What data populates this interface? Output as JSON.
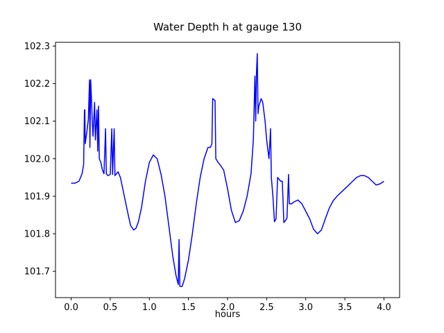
{
  "chart_data": {
    "type": "line",
    "title": "Water Depth h at gauge 130",
    "xlabel": "hours",
    "ylabel": "",
    "line_color": "#0000ff",
    "background": "#ffffff",
    "grid": false,
    "legend": "none",
    "xlim": [
      -0.2,
      4.2
    ],
    "ylim": [
      101.63,
      102.31
    ],
    "xticks": [
      0.0,
      0.5,
      1.0,
      1.5,
      2.0,
      2.5,
      3.0,
      3.5,
      4.0
    ],
    "xtick_labels": [
      "0.0",
      "0.5",
      "1.0",
      "1.5",
      "2.0",
      "2.5",
      "3.0",
      "3.5",
      "4.0"
    ],
    "yticks": [
      101.7,
      101.8,
      101.9,
      102.0,
      102.1,
      102.2,
      102.3
    ],
    "ytick_labels": [
      "101.7",
      "101.8",
      "101.9",
      "102.0",
      "102.1",
      "102.2",
      "102.3"
    ],
    "points": [
      [
        0.0,
        101.935
      ],
      [
        0.05,
        101.935
      ],
      [
        0.1,
        101.94
      ],
      [
        0.14,
        101.96
      ],
      [
        0.16,
        101.985
      ],
      [
        0.17,
        102.13
      ],
      [
        0.175,
        102.13
      ],
      [
        0.18,
        102.04
      ],
      [
        0.2,
        102.07
      ],
      [
        0.22,
        102.105
      ],
      [
        0.235,
        102.21
      ],
      [
        0.24,
        102.03
      ],
      [
        0.25,
        102.21
      ],
      [
        0.26,
        102.16
      ],
      [
        0.27,
        102.1
      ],
      [
        0.28,
        102.06
      ],
      [
        0.3,
        102.15
      ],
      [
        0.31,
        102.05
      ],
      [
        0.33,
        102.13
      ],
      [
        0.34,
        102.02
      ],
      [
        0.35,
        102.14
      ],
      [
        0.36,
        102.0
      ],
      [
        0.38,
        101.99
      ],
      [
        0.4,
        101.97
      ],
      [
        0.42,
        101.96
      ],
      [
        0.44,
        102.08
      ],
      [
        0.45,
        101.96
      ],
      [
        0.47,
        101.955
      ],
      [
        0.5,
        101.958
      ],
      [
        0.52,
        102.08
      ],
      [
        0.53,
        101.958
      ],
      [
        0.55,
        102.08
      ],
      [
        0.56,
        101.955
      ],
      [
        0.58,
        101.96
      ],
      [
        0.6,
        101.965
      ],
      [
        0.63,
        101.95
      ],
      [
        0.65,
        101.93
      ],
      [
        0.68,
        101.9
      ],
      [
        0.72,
        101.86
      ],
      [
        0.76,
        101.822
      ],
      [
        0.8,
        101.81
      ],
      [
        0.83,
        101.815
      ],
      [
        0.86,
        101.832
      ],
      [
        0.9,
        101.87
      ],
      [
        0.95,
        101.94
      ],
      [
        1.0,
        101.99
      ],
      [
        1.05,
        102.01
      ],
      [
        1.1,
        102.0
      ],
      [
        1.15,
        101.958
      ],
      [
        1.2,
        101.9
      ],
      [
        1.25,
        101.82
      ],
      [
        1.3,
        101.74
      ],
      [
        1.34,
        101.69
      ],
      [
        1.37,
        101.665
      ],
      [
        1.38,
        101.785
      ],
      [
        1.39,
        101.66
      ],
      [
        1.42,
        101.66
      ],
      [
        1.45,
        101.68
      ],
      [
        1.5,
        101.73
      ],
      [
        1.55,
        101.8
      ],
      [
        1.6,
        101.88
      ],
      [
        1.65,
        101.95
      ],
      [
        1.7,
        102.0
      ],
      [
        1.75,
        102.03
      ],
      [
        1.78,
        102.03
      ],
      [
        1.8,
        102.04
      ],
      [
        1.81,
        102.16
      ],
      [
        1.84,
        102.155
      ],
      [
        1.85,
        102.0
      ],
      [
        1.88,
        101.99
      ],
      [
        1.9,
        101.985
      ],
      [
        1.95,
        101.97
      ],
      [
        2.0,
        101.92
      ],
      [
        2.05,
        101.862
      ],
      [
        2.1,
        101.83
      ],
      [
        2.15,
        101.835
      ],
      [
        2.2,
        101.86
      ],
      [
        2.25,
        101.9
      ],
      [
        2.3,
        101.96
      ],
      [
        2.33,
        102.05
      ],
      [
        2.35,
        102.22
      ],
      [
        2.36,
        102.1
      ],
      [
        2.37,
        102.23
      ],
      [
        2.38,
        102.28
      ],
      [
        2.39,
        102.12
      ],
      [
        2.4,
        102.14
      ],
      [
        2.43,
        102.16
      ],
      [
        2.45,
        102.15
      ],
      [
        2.48,
        102.1
      ],
      [
        2.5,
        102.05
      ],
      [
        2.53,
        102.0
      ],
      [
        2.55,
        102.08
      ],
      [
        2.56,
        101.95
      ],
      [
        2.58,
        101.9
      ],
      [
        2.6,
        101.832
      ],
      [
        2.62,
        101.84
      ],
      [
        2.64,
        101.95
      ],
      [
        2.66,
        101.945
      ],
      [
        2.68,
        101.94
      ],
      [
        2.7,
        101.94
      ],
      [
        2.72,
        101.83
      ],
      [
        2.74,
        101.835
      ],
      [
        2.76,
        101.842
      ],
      [
        2.78,
        101.958
      ],
      [
        2.79,
        101.88
      ],
      [
        2.82,
        101.88
      ],
      [
        2.85,
        101.885
      ],
      [
        2.9,
        101.89
      ],
      [
        2.95,
        101.88
      ],
      [
        3.0,
        101.86
      ],
      [
        3.05,
        101.84
      ],
      [
        3.1,
        101.812
      ],
      [
        3.15,
        101.8
      ],
      [
        3.2,
        101.81
      ],
      [
        3.25,
        101.84
      ],
      [
        3.3,
        101.868
      ],
      [
        3.35,
        101.888
      ],
      [
        3.4,
        101.9
      ],
      [
        3.45,
        101.91
      ],
      [
        3.5,
        101.92
      ],
      [
        3.55,
        101.93
      ],
      [
        3.6,
        101.94
      ],
      [
        3.65,
        101.95
      ],
      [
        3.7,
        101.955
      ],
      [
        3.75,
        101.955
      ],
      [
        3.8,
        101.95
      ],
      [
        3.85,
        101.94
      ],
      [
        3.9,
        101.93
      ],
      [
        3.95,
        101.933
      ],
      [
        4.0,
        101.94
      ]
    ]
  }
}
